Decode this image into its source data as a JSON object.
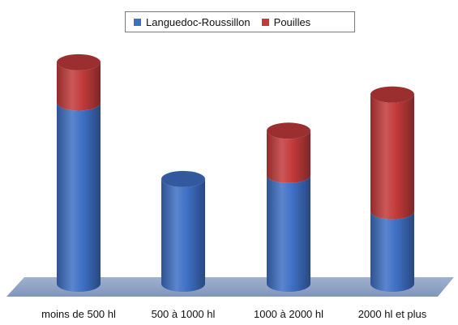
{
  "chart_data": {
    "type": "bar",
    "stacked": true,
    "style": "3d-cylinder",
    "categories": [
      "moins de 500 hl",
      "500 à 1000 hl",
      "1000 à 2000 hl",
      "2000 hl et plus"
    ],
    "series": [
      {
        "name": "Languedoc-Roussillon",
        "color": "#3e6fc4",
        "values": [
          225,
          130,
          135,
          90
        ]
      },
      {
        "name": "Pouilles",
        "color": "#c23a3a",
        "values": [
          50,
          0,
          55,
          145
        ]
      }
    ],
    "ylim": [
      0,
      290
    ],
    "legend_position": "top-center",
    "grid": false
  }
}
